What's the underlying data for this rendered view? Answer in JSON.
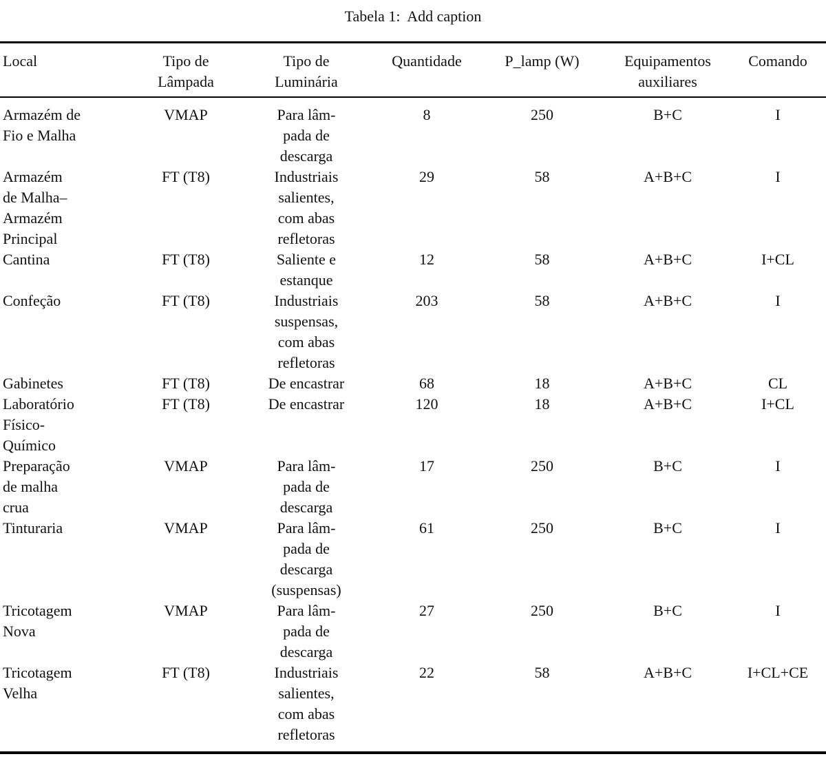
{
  "caption": "Tabela 1:  Add caption",
  "table": {
    "columns": [
      {
        "key": "local",
        "label": "Local",
        "align": "left"
      },
      {
        "key": "tipo-lampada",
        "label": "Tipo de\nLâmpada",
        "align": "center"
      },
      {
        "key": "tipo-luminaria",
        "label": "Tipo de\nLuminária",
        "align": "center"
      },
      {
        "key": "quantidade",
        "label": "Quantidade",
        "align": "center"
      },
      {
        "key": "p-lamp",
        "label": "P_lamp (W)",
        "align": "center"
      },
      {
        "key": "equipamentos",
        "label": "Equipamentos\nauxiliares",
        "align": "center"
      },
      {
        "key": "comando",
        "label": "Comando",
        "align": "center"
      }
    ],
    "rows": [
      [
        "Armazém de\nFio e Malha",
        "VMAP",
        "Para lâm-\npada de\ndescarga",
        "8",
        "250",
        "B+C",
        "I"
      ],
      [
        "Armazém\nde Malha–\nArmazém\nPrincipal",
        "FT (T8)",
        "Industriais\nsalientes,\ncom abas\nrefletoras",
        "29",
        "58",
        "A+B+C",
        "I"
      ],
      [
        "Cantina",
        "FT (T8)",
        "Saliente e\nestanque",
        "12",
        "58",
        "A+B+C",
        "I+CL"
      ],
      [
        "Confeção",
        "FT (T8)",
        "Industriais\nsuspensas,\ncom abas\nrefletoras",
        "203",
        "58",
        "A+B+C",
        "I"
      ],
      [
        "Gabinetes",
        "FT (T8)",
        "De encastrar",
        "68",
        "18",
        "A+B+C",
        "CL"
      ],
      [
        "Laboratório\nFísico-\nQuímico",
        "FT (T8)",
        "De encastrar",
        "120",
        "18",
        "A+B+C",
        "I+CL"
      ],
      [
        "Preparação\nde malha\ncrua",
        "VMAP",
        "Para lâm-\npada de\ndescarga",
        "17",
        "250",
        "B+C",
        "I"
      ],
      [
        "Tinturaria",
        "VMAP",
        "Para lâm-\npada de\ndescarga\n(suspensas)",
        "61",
        "250",
        "B+C",
        "I"
      ],
      [
        "Tricotagem\nNova",
        "VMAP",
        "Para lâm-\npada de\ndescarga",
        "27",
        "250",
        "B+C",
        "I"
      ],
      [
        "Tricotagem\nVelha",
        "FT (T8)",
        "Industriais\nsalientes,\ncom abas\nrefletoras",
        "22",
        "58",
        "A+B+C",
        "I+CL+CE"
      ]
    ]
  },
  "colors": {
    "background": "#ffffff",
    "text": "#111111",
    "rule": "#000000"
  }
}
